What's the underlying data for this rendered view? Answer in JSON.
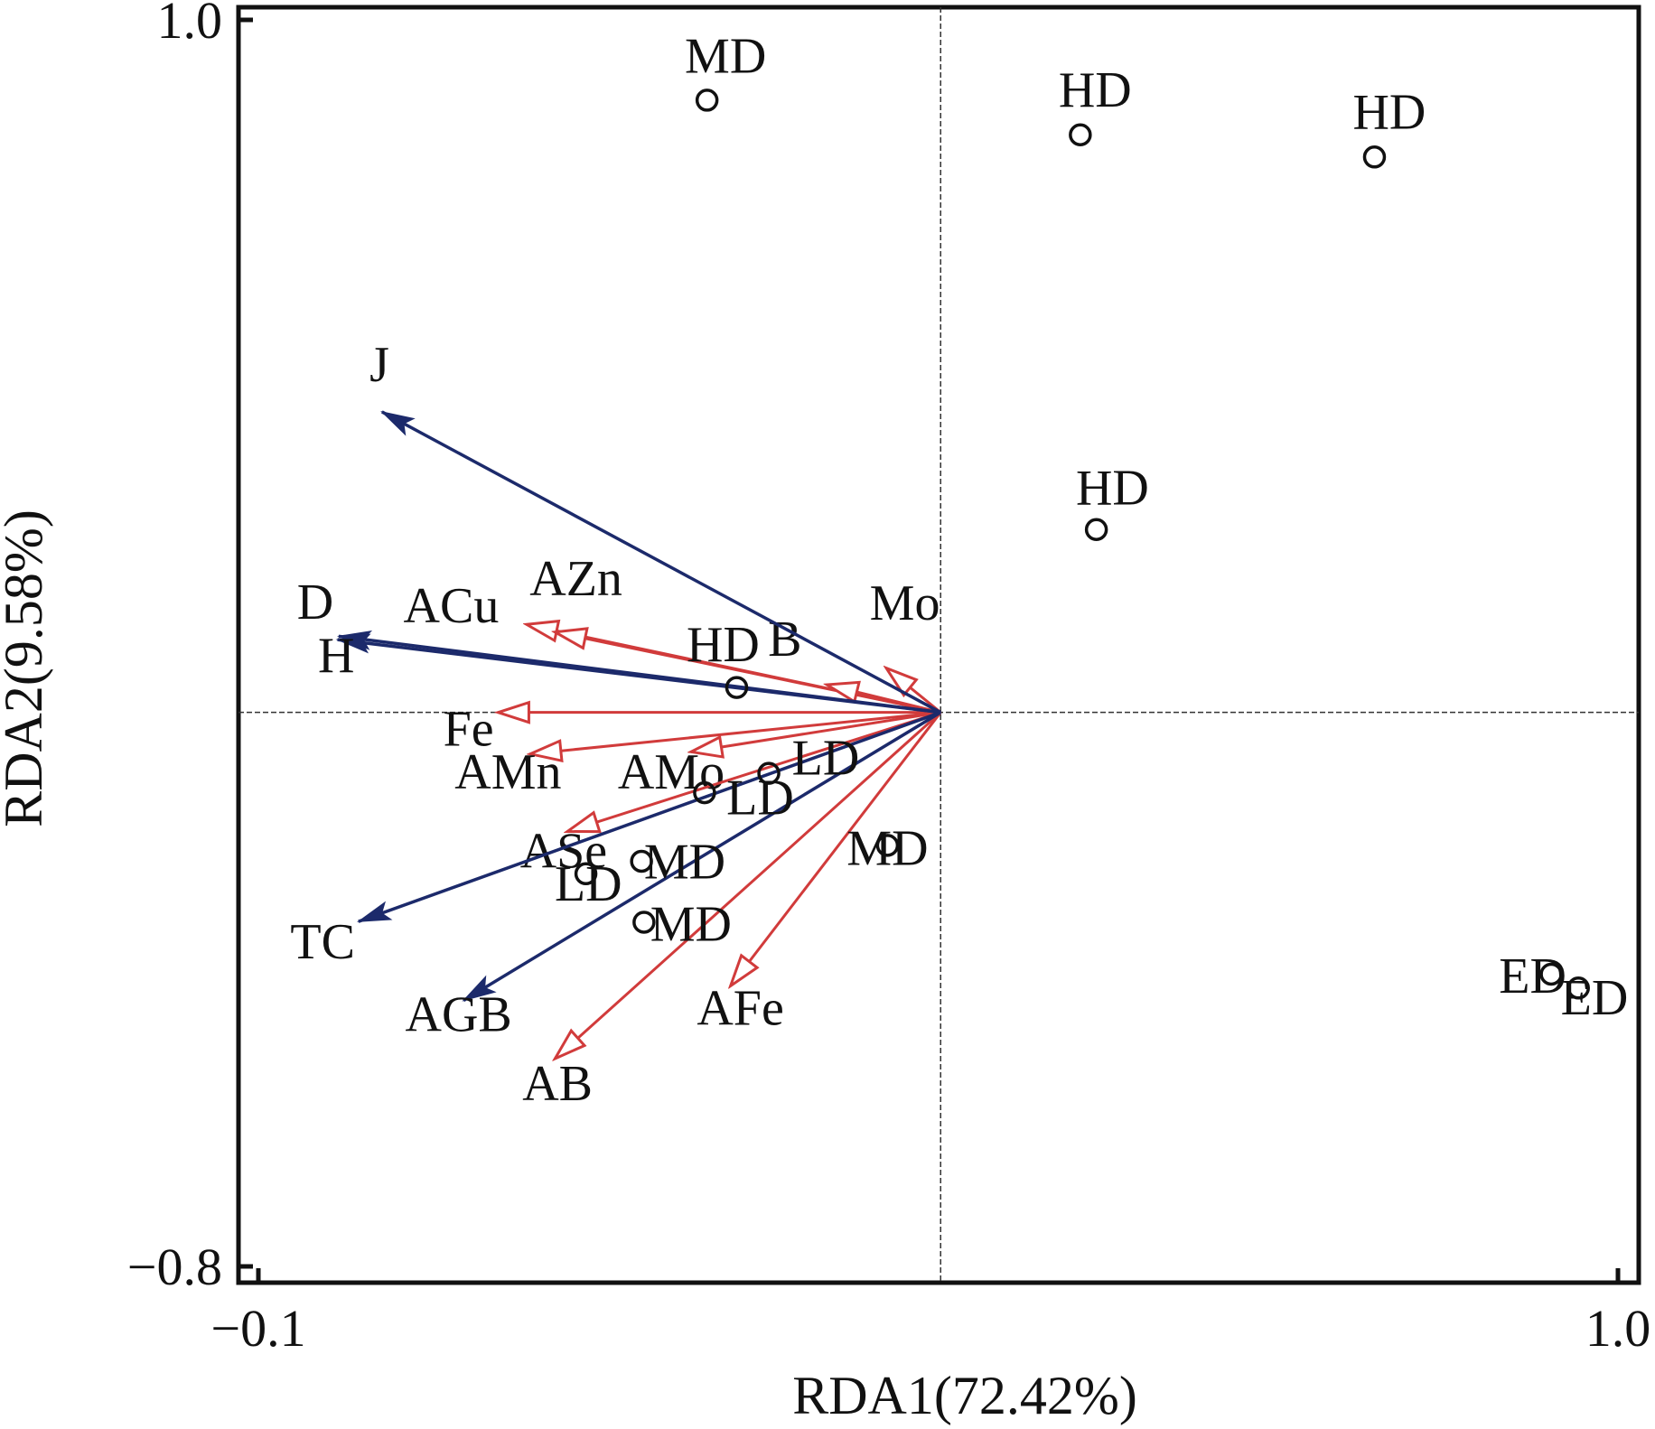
{
  "chart_data": {
    "type": "scatter",
    "subtype": "rda-biplot",
    "xlabel": "RDA1(72.42%)",
    "ylabel": "RDA2(9.58%)",
    "xlim": [
      -0.1,
      1.0
    ],
    "ylim": [
      -0.8,
      1.0
    ],
    "x_ticks": [
      {
        "value": -0.1,
        "label": "−0.1"
      },
      {
        "value": 1.0,
        "label": "1.0"
      }
    ],
    "y_ticks": [
      {
        "value": -0.8,
        "label": "−0.8"
      },
      {
        "value": 1.0,
        "label": "1.0"
      }
    ],
    "origin": {
      "x": 0.452,
      "y": 0.0
    },
    "colors": {
      "frame": "#111111",
      "blue_arrows": "#1c2a6b",
      "red_arrows": "#d13b3b",
      "points": "#111111"
    },
    "blue_arrows": [
      {
        "label": "J",
        "x": 0.0,
        "y": 0.434,
        "label_x": -0.002,
        "label_y": 0.478
      },
      {
        "label": "D",
        "x": -0.035,
        "y": 0.11,
        "label_x": -0.054,
        "label_y": 0.135
      },
      {
        "label": "H",
        "x": -0.036,
        "y": 0.105,
        "label_x": -0.037,
        "label_y": 0.058
      },
      {
        "label": "TC",
        "x": -0.019,
        "y": -0.302,
        "label_x": -0.048,
        "label_y": -0.355
      },
      {
        "label": "AGB",
        "x": 0.066,
        "y": -0.416,
        "label_x": 0.062,
        "label_y": -0.46
      }
    ],
    "red_arrows": [
      {
        "label": "ACu",
        "x": 0.117,
        "y": 0.127,
        "label_x": 0.056,
        "label_y": 0.13
      },
      {
        "label": "AZn",
        "x": 0.14,
        "y": 0.116,
        "label_x": 0.157,
        "label_y": 0.169
      },
      {
        "label": "B",
        "x": 0.36,
        "y": 0.04,
        "label_x": 0.326,
        "label_y": 0.082
      },
      {
        "label": "Mo",
        "x": 0.408,
        "y": 0.064,
        "label_x": 0.423,
        "label_y": 0.134
      },
      {
        "label": "Fe",
        "x": 0.094,
        "y": 0.0,
        "label_x": 0.07,
        "label_y": -0.048
      },
      {
        "label": "AMn",
        "x": 0.12,
        "y": -0.06,
        "label_x": 0.102,
        "label_y": -0.11
      },
      {
        "label": "AMo",
        "x": 0.25,
        "y": -0.057,
        "label_x": 0.234,
        "label_y": -0.11
      },
      {
        "label": "ASe",
        "x": 0.15,
        "y": -0.172,
        "label_x": 0.147,
        "label_y": -0.224
      },
      {
        "label": "AFe",
        "x": 0.282,
        "y": -0.395,
        "label_x": 0.29,
        "label_y": -0.451
      },
      {
        "label": "AB",
        "x": 0.14,
        "y": -0.5,
        "label_x": 0.142,
        "label_y": -0.56
      }
    ],
    "samples": [
      {
        "label": "MD",
        "x": 0.263,
        "y": 0.884,
        "label_x": 0.278,
        "label_y": 0.924
      },
      {
        "label": "HD",
        "x": 0.565,
        "y": 0.834,
        "label_x": 0.577,
        "label_y": 0.875
      },
      {
        "label": "HD",
        "x": 0.803,
        "y": 0.802,
        "label_x": 0.815,
        "label_y": 0.843
      },
      {
        "label": "HD",
        "x": 0.578,
        "y": 0.264,
        "label_x": 0.591,
        "label_y": 0.3
      },
      {
        "label": "HD",
        "x": 0.287,
        "y": 0.036,
        "label_x": 0.276,
        "label_y": 0.074
      },
      {
        "label": "LD",
        "x": 0.313,
        "y": -0.088,
        "label_x": 0.359,
        "label_y": -0.09
      },
      {
        "label": "LD",
        "x": 0.261,
        "y": -0.116,
        "label_x": 0.306,
        "label_y": -0.147
      },
      {
        "label": "MD",
        "x": 0.409,
        "y": -0.192,
        "label_x": 0.409,
        "label_y": -0.22
      },
      {
        "label": "MD",
        "x": 0.21,
        "y": -0.215,
        "label_x": 0.245,
        "label_y": -0.24
      },
      {
        "label": "LD",
        "x": 0.165,
        "y": -0.233,
        "label_x": 0.167,
        "label_y": -0.272
      },
      {
        "label": "MD",
        "x": 0.212,
        "y": -0.303,
        "label_x": 0.25,
        "label_y": -0.33
      },
      {
        "label": "ED",
        "x": 0.946,
        "y": -0.378,
        "label_x": 0.931,
        "label_y": -0.405
      },
      {
        "label": "ED",
        "x": 0.968,
        "y": -0.398,
        "label_x": 0.981,
        "label_y": -0.436
      }
    ]
  }
}
